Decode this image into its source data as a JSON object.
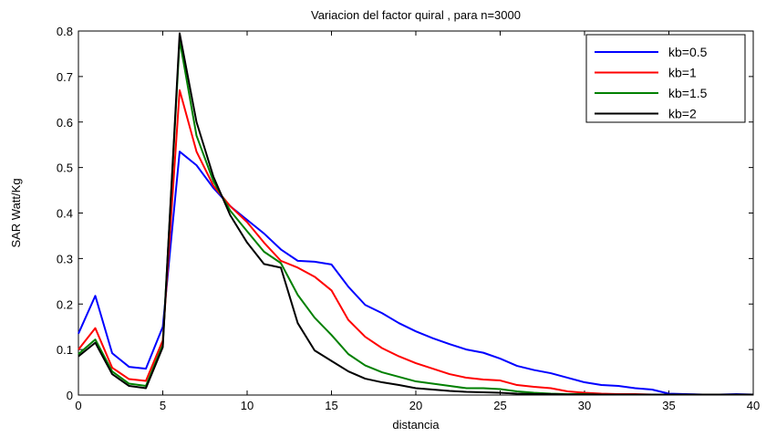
{
  "chart_data": {
    "type": "line",
    "title": "Variacion del factor quiral , para n=3000",
    "xlabel": "distancia",
    "ylabel": "SAR Watt/Kg",
    "xlim": [
      0,
      40
    ],
    "ylim": [
      0,
      0.8
    ],
    "xticks": [
      0,
      5,
      10,
      15,
      20,
      25,
      30,
      35,
      40
    ],
    "yticks": [
      0,
      0.1,
      0.2,
      0.3,
      0.4,
      0.5,
      0.6,
      0.7,
      0.8
    ],
    "xtick_labels": [
      "0",
      "5",
      "10",
      "15",
      "20",
      "25",
      "30",
      "35",
      "40"
    ],
    "ytick_labels": [
      "0",
      "0.1",
      "0.2",
      "0.3",
      "0.4",
      "0.5",
      "0.6",
      "0.7",
      "0.8"
    ],
    "grid": false,
    "legend_position": "top-right",
    "x": [
      0,
      1,
      2,
      3,
      4,
      5,
      6,
      7,
      8,
      9,
      10,
      11,
      12,
      13,
      14,
      15,
      16,
      17,
      18,
      19,
      20,
      21,
      22,
      23,
      24,
      25,
      26,
      27,
      28,
      29,
      30,
      31,
      32,
      33,
      34,
      35,
      36,
      37,
      38,
      39,
      40
    ],
    "series": [
      {
        "name": "kb=0.5",
        "color": "#0000ff",
        "values": [
          0.135,
          0.218,
          0.092,
          0.062,
          0.058,
          0.15,
          0.535,
          0.505,
          0.455,
          0.415,
          0.385,
          0.355,
          0.32,
          0.295,
          0.293,
          0.287,
          0.238,
          0.198,
          0.18,
          0.158,
          0.14,
          0.125,
          0.112,
          0.1,
          0.093,
          0.08,
          0.064,
          0.055,
          0.048,
          0.038,
          0.028,
          0.022,
          0.02,
          0.015,
          0.012,
          0.003,
          0.002,
          0.001,
          0.001,
          0.002,
          0.001
        ]
      },
      {
        "name": "kb=1",
        "color": "#ff0000",
        "values": [
          0.1,
          0.147,
          0.06,
          0.035,
          0.031,
          0.12,
          0.67,
          0.535,
          0.46,
          0.415,
          0.38,
          0.335,
          0.295,
          0.28,
          0.26,
          0.23,
          0.165,
          0.128,
          0.103,
          0.085,
          0.07,
          0.058,
          0.046,
          0.038,
          0.034,
          0.032,
          0.022,
          0.018,
          0.015,
          0.008,
          0.005,
          0.003,
          0.002,
          0.002,
          0.001,
          0.001,
          0.001,
          0.001,
          0.001,
          0.001,
          0.001
        ]
      },
      {
        "name": "kb=1.5",
        "color": "#008000",
        "values": [
          0.09,
          0.122,
          0.052,
          0.025,
          0.02,
          0.11,
          0.78,
          0.57,
          0.47,
          0.405,
          0.36,
          0.315,
          0.29,
          0.22,
          0.17,
          0.132,
          0.09,
          0.065,
          0.05,
          0.04,
          0.03,
          0.025,
          0.02,
          0.015,
          0.015,
          0.013,
          0.008,
          0.005,
          0.003,
          0.002,
          0.002,
          0.001,
          0.001,
          0.001,
          0.001,
          0.001,
          0.001,
          0.001,
          0.001,
          0.001,
          0.001
        ]
      },
      {
        "name": "kb=2",
        "color": "#000000",
        "values": [
          0.085,
          0.115,
          0.046,
          0.02,
          0.015,
          0.105,
          0.795,
          0.6,
          0.48,
          0.395,
          0.335,
          0.288,
          0.28,
          0.158,
          0.098,
          0.075,
          0.052,
          0.036,
          0.028,
          0.022,
          0.015,
          0.012,
          0.009,
          0.007,
          0.006,
          0.005,
          0.003,
          0.002,
          0.002,
          0.001,
          0.001,
          0.001,
          0.001,
          0.001,
          0.001,
          0.001,
          0.001,
          0.001,
          0.001,
          0.001,
          0.001
        ]
      }
    ]
  }
}
